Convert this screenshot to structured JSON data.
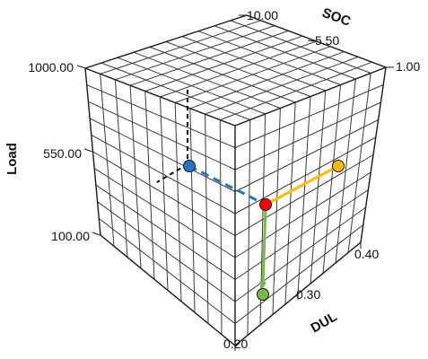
{
  "axes": {
    "soc": {
      "title": "SOC",
      "ticks": [
        "10.00",
        "5.50",
        "1.00"
      ]
    },
    "load": {
      "title": "Load",
      "ticks": [
        "1000.00",
        "550.00",
        "100.00"
      ]
    },
    "dul": {
      "title": "DUL",
      "ticks": [
        "0.20",
        "0.30",
        "0.40"
      ]
    }
  },
  "grid_divisions": 10,
  "colors": {
    "grid": "#3a3a3a",
    "blue": "#1f77c4",
    "red": "#ff0000",
    "orange": "#ffbb00",
    "green": "#77bb44",
    "guide": "#000000"
  },
  "points": [
    {
      "name": "blue-point",
      "color": "#1f77c4"
    },
    {
      "name": "red-point",
      "color": "#ff0000"
    },
    {
      "name": "orange-point",
      "color": "#ffbb00"
    },
    {
      "name": "green-point",
      "color": "#77bb44"
    }
  ],
  "connectors": [
    {
      "name": "blue-to-red-dashed-line",
      "color": "#1f77c4",
      "style": "dashed"
    },
    {
      "name": "red-to-orange-line",
      "color": "#ffbb00",
      "style": "solid"
    },
    {
      "name": "red-to-green-arrow",
      "color": "#77bb44",
      "style": "solid-arrow"
    }
  ]
}
